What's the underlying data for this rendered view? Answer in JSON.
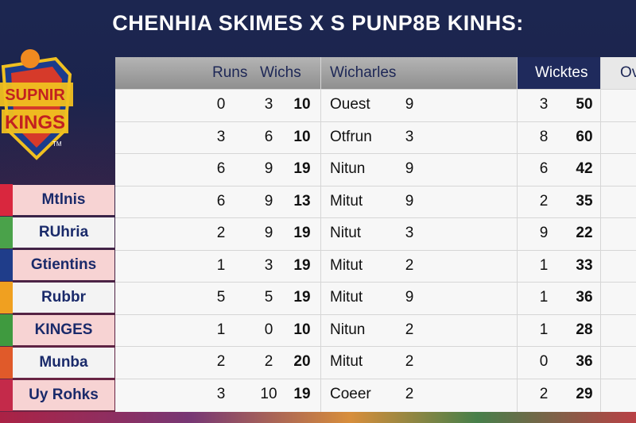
{
  "title": "CHENHIA SKIMES X S PUNP8B KINHS:",
  "logo": {
    "text_top": "SUPNIR",
    "text_bottom": "KINGS",
    "tm": "TM"
  },
  "headers": {
    "runs": "Runs",
    "wickets1": "Wichs",
    "wicherles": "Wicharles",
    "wicktes": "Wicktes",
    "overflow": "Ov"
  },
  "row_labels": [
    "Mtlnis",
    "RUhria",
    "Gtientins",
    "Rubbr",
    "KINGES",
    "Munba",
    "Uy Rohks"
  ],
  "stripe_colors": [
    "#d9273e",
    "#4aa24a",
    "#1f3d8a",
    "#f0a020",
    "#3f9a3f",
    "#e05a2a",
    "#c42a4a"
  ],
  "rows": [
    {
      "a": "0",
      "b": "3",
      "c": "10",
      "name": "Ouest",
      "d": "9",
      "e": "3",
      "f": "50"
    },
    {
      "a": "3",
      "b": "6",
      "c": "10",
      "name": "Otfrun",
      "d": "3",
      "e": "8",
      "f": "60"
    },
    {
      "a": "6",
      "b": "9",
      "c": "19",
      "name": "Nitun",
      "d": "9",
      "e": "6",
      "f": "42"
    },
    {
      "a": "6",
      "b": "9",
      "c": "13",
      "name": "Mitut",
      "d": "9",
      "e": "2",
      "f": "35"
    },
    {
      "a": "2",
      "b": "9",
      "c": "19",
      "name": "Nitut",
      "d": "3",
      "e": "9",
      "f": "22"
    },
    {
      "a": "1",
      "b": "3",
      "c": "19",
      "name": "Mitut",
      "d": "2",
      "e": "1",
      "f": "33"
    },
    {
      "a": "5",
      "b": "5",
      "c": "19",
      "name": "Mitut",
      "d": "9",
      "e": "1",
      "f": "36"
    },
    {
      "a": "1",
      "b": "0",
      "c": "10",
      "name": "Nitun",
      "d": "2",
      "e": "1",
      "f": "28"
    },
    {
      "a": "2",
      "b": "2",
      "c": "20",
      "name": "Mitut",
      "d": "2",
      "e": "0",
      "f": "36"
    },
    {
      "a": "3",
      "b": "10",
      "c": "19",
      "name": "Coeer",
      "d": "2",
      "e": "2",
      "f": "29"
    }
  ],
  "colors": {
    "navy": "#1b2451",
    "header_grey": "#9a9a9a",
    "header_navy": "#1f2a5c"
  }
}
